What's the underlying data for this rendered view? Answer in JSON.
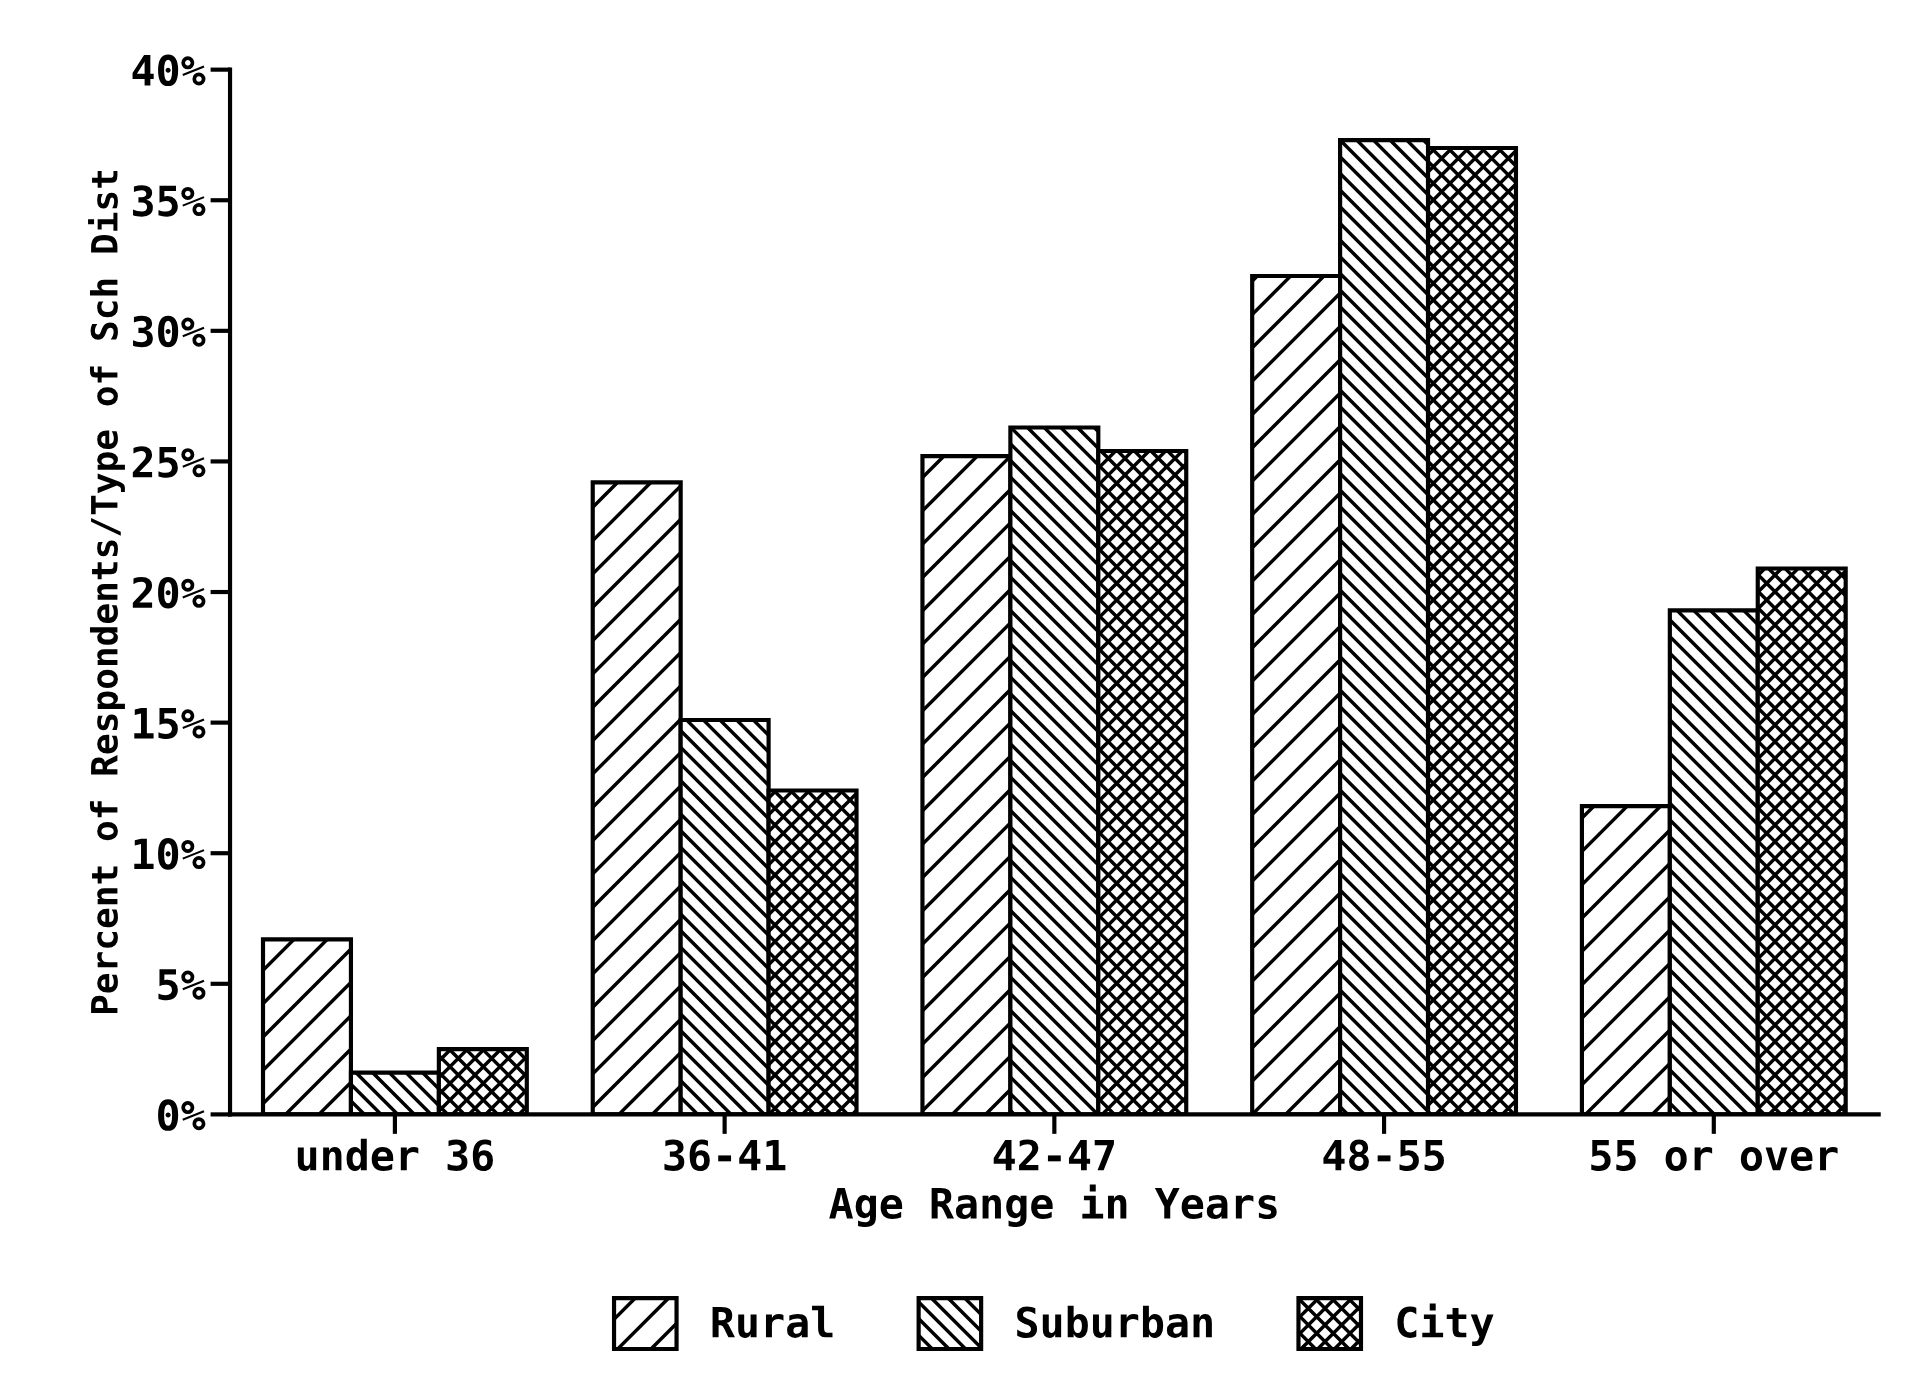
{
  "chart_data": {
    "type": "bar",
    "xlabel": "Age Range in Years",
    "ylabel": "Percent of Respondents/Type of Sch Dist",
    "categories": [
      "under 36",
      "36-41",
      "42-47",
      "48-55",
      "55 or over"
    ],
    "series": [
      {
        "name": "Rural",
        "color": "#000000",
        "values": [
          6.7,
          24.2,
          25.2,
          32.1,
          11.8
        ]
      },
      {
        "name": "Suburban",
        "color": "#000000",
        "values": [
          1.6,
          15.1,
          26.3,
          37.3,
          19.3
        ]
      },
      {
        "name": "City",
        "color": "#000000",
        "values": [
          2.5,
          12.4,
          25.4,
          37.0,
          20.9
        ]
      }
    ],
    "ylim": [
      0,
      40
    ],
    "yticks": [
      {
        "value": 0,
        "label": "0%"
      },
      {
        "value": 5,
        "label": "5%"
      },
      {
        "value": 10,
        "label": "10%"
      },
      {
        "value": 15,
        "label": "15%"
      },
      {
        "value": 20,
        "label": "20%"
      },
      {
        "value": 25,
        "label": "25%"
      },
      {
        "value": 30,
        "label": "30%"
      },
      {
        "value": 35,
        "label": "35%"
      },
      {
        "value": 40,
        "label": "40%"
      }
    ],
    "grid": false,
    "legend": "bottom"
  }
}
